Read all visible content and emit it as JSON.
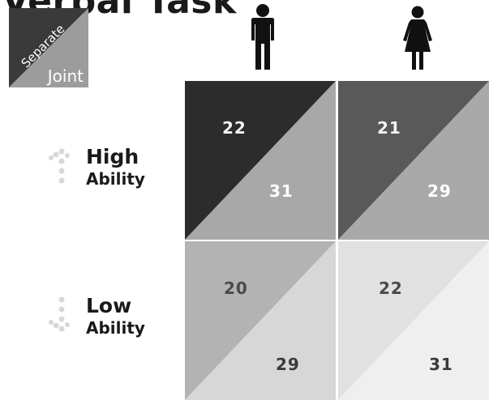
{
  "title": "Verbal Task",
  "legend": {
    "separate_label": "Separate",
    "joint_label": "Joint"
  },
  "columns": [
    {
      "icon": "male-person-icon"
    },
    {
      "icon": "female-person-icon"
    }
  ],
  "rows": [
    {
      "label_main": "High",
      "label_sub": "Ability",
      "arrow": "up-arrow-icon"
    },
    {
      "label_main": "Low",
      "label_sub": "Ability",
      "arrow": "down-arrow-icon"
    }
  ],
  "cells": [
    {
      "separate": "22",
      "joint": "31",
      "colors": {
        "separate": "#2c2c2c",
        "joint": "#a8a8a8"
      }
    },
    {
      "separate": "21",
      "joint": "29",
      "colors": {
        "separate": "#595959",
        "joint": "#a9a9a9"
      }
    },
    {
      "separate": "20",
      "joint": "29",
      "colors": {
        "separate": "#b3b3b3",
        "joint": "#d7d7d7"
      }
    },
    {
      "separate": "22",
      "joint": "31",
      "colors": {
        "separate": "#e1e1e1",
        "joint": "#efefef"
      }
    }
  ]
}
